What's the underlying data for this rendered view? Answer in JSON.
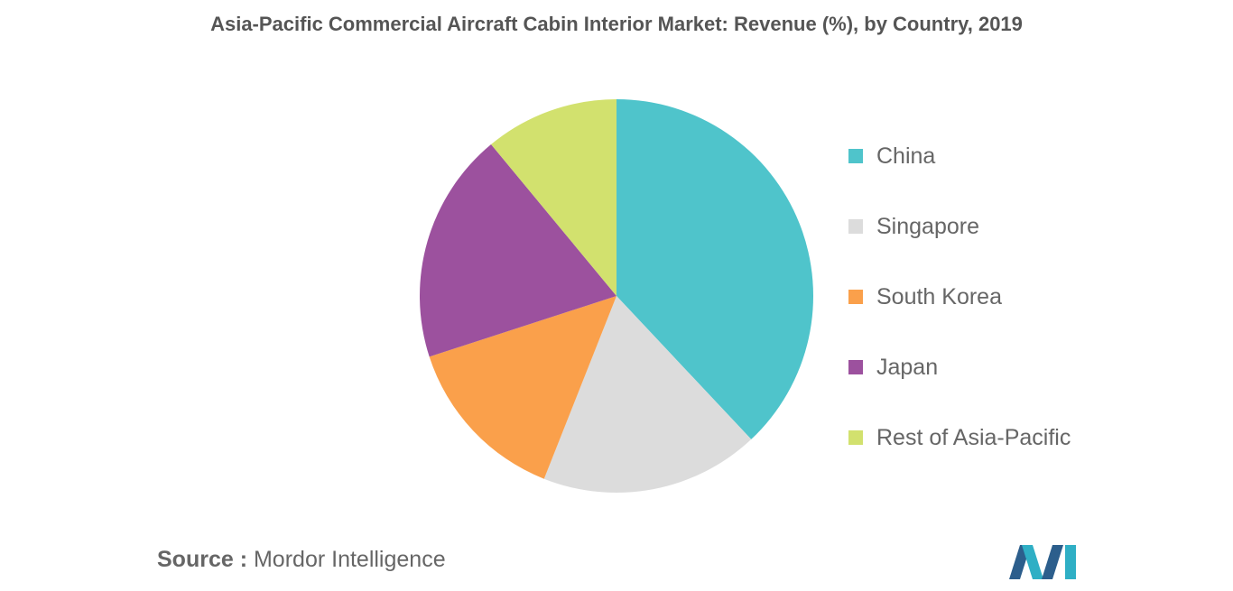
{
  "source": {
    "prefix": "Source :",
    "name": "Mordor Intelligence"
  },
  "colors": {
    "China": "#4FC4CB",
    "Singapore": "#DCDCDC",
    "South Korea": "#FAA04B",
    "Japan": "#9C519E",
    "Rest of Asia-Pacific": "#D2E16E"
  },
  "chart_data": {
    "type": "pie",
    "title": "Asia-Pacific Commercial Aircraft Cabin Interior Market: Revenue (%), by Country, 2019",
    "categories": [
      "China",
      "Singapore",
      "South Korea",
      "Japan",
      "Rest of Asia-Pacific"
    ],
    "values": [
      38,
      18,
      14,
      19,
      11
    ],
    "legend_position": "right",
    "start_angle_deg": 0,
    "direction": "clockwise"
  }
}
